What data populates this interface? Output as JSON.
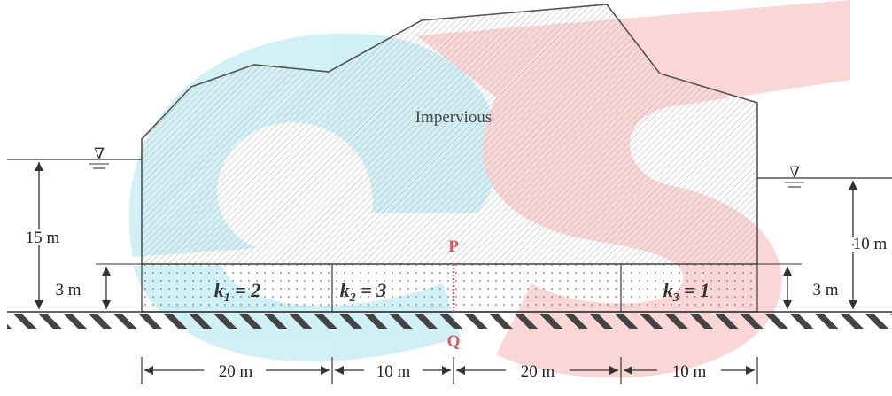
{
  "dam": {
    "label": "Impervious"
  },
  "water": {
    "upstream_symbol": "∇",
    "downstream_symbol": "∇"
  },
  "dims": {
    "upstream_head": "15 m",
    "downstream_head": "10 m",
    "layer_left": "3 m",
    "layer_right": "3 m"
  },
  "soil": {
    "k1": {
      "sym": "k",
      "sub": "1",
      "rest": " = 2"
    },
    "k2": {
      "sym": "k",
      "sub": "2",
      "rest": " = 3"
    },
    "k3": {
      "sym": "k",
      "sub": "3",
      "rest": " = 1"
    }
  },
  "points": {
    "top": "P",
    "bottom": "Q"
  },
  "lengths": [
    "20 m",
    "10 m",
    "20 m",
    "10 m"
  ],
  "colors": {
    "outline": "#555555",
    "hatch": "#bdbdbd",
    "watermark_blue": "#cdeff5",
    "watermark_red": "#fbd2d2",
    "accent": "#e05555"
  }
}
